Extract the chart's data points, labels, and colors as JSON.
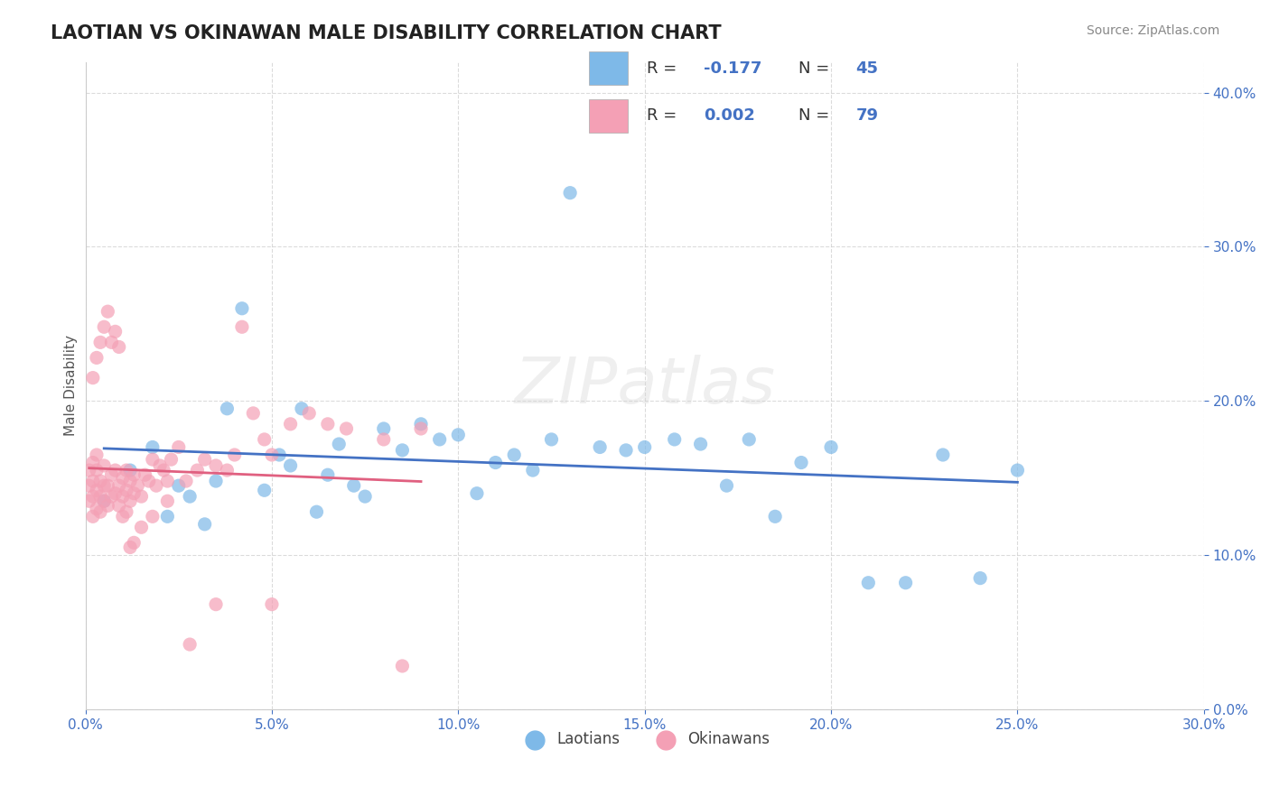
{
  "title": "LAOTIAN VS OKINAWAN MALE DISABILITY CORRELATION CHART",
  "source": "Source: ZipAtlas.com",
  "xlabel_label": "",
  "ylabel_label": "Male Disability",
  "xlim": [
    0.0,
    0.3
  ],
  "ylim": [
    0.0,
    0.42
  ],
  "xtick_vals": [
    0.0,
    0.05,
    0.1,
    0.15,
    0.2,
    0.25,
    0.3
  ],
  "xtick_labels": [
    "0.0%",
    "",
    "",
    "",
    "",
    "",
    "30.0%"
  ],
  "ytick_vals": [
    0.0,
    0.1,
    0.2,
    0.3,
    0.4
  ],
  "ytick_labels": [
    "",
    "10.0%",
    "20.0%",
    "30.0%",
    "40.0%"
  ],
  "grid_color": "#cccccc",
  "background_color": "#ffffff",
  "laotian_color": "#7EB9E8",
  "okinawan_color": "#F4A0B5",
  "laotian_line_color": "#4472C4",
  "okinawan_line_color": "#E06080",
  "watermark": "ZIPatlas",
  "legend_r_laotian": "R = -0.177",
  "legend_n_laotian": "N = 45",
  "legend_r_okinawan": "R = 0.002",
  "legend_n_okinawan": "N = 79",
  "laotian_x": [
    0.005,
    0.012,
    0.018,
    0.022,
    0.025,
    0.028,
    0.032,
    0.035,
    0.038,
    0.042,
    0.048,
    0.052,
    0.055,
    0.058,
    0.062,
    0.065,
    0.068,
    0.072,
    0.075,
    0.08,
    0.085,
    0.09,
    0.095,
    0.1,
    0.105,
    0.11,
    0.115,
    0.12,
    0.125,
    0.13,
    0.138,
    0.145,
    0.15,
    0.158,
    0.165,
    0.172,
    0.178,
    0.185,
    0.192,
    0.2,
    0.21,
    0.22,
    0.23,
    0.24,
    0.25
  ],
  "laotian_y": [
    0.135,
    0.155,
    0.17,
    0.125,
    0.145,
    0.138,
    0.12,
    0.148,
    0.195,
    0.26,
    0.142,
    0.165,
    0.158,
    0.195,
    0.128,
    0.152,
    0.172,
    0.145,
    0.138,
    0.182,
    0.168,
    0.185,
    0.175,
    0.178,
    0.14,
    0.16,
    0.165,
    0.155,
    0.175,
    0.335,
    0.17,
    0.168,
    0.17,
    0.175,
    0.172,
    0.145,
    0.175,
    0.125,
    0.16,
    0.17,
    0.082,
    0.082,
    0.165,
    0.085,
    0.155
  ],
  "okinawan_x": [
    0.001,
    0.001,
    0.001,
    0.002,
    0.002,
    0.002,
    0.002,
    0.003,
    0.003,
    0.003,
    0.003,
    0.004,
    0.004,
    0.004,
    0.005,
    0.005,
    0.005,
    0.006,
    0.006,
    0.007,
    0.007,
    0.008,
    0.008,
    0.009,
    0.009,
    0.01,
    0.01,
    0.011,
    0.011,
    0.012,
    0.012,
    0.013,
    0.013,
    0.014,
    0.015,
    0.016,
    0.017,
    0.018,
    0.019,
    0.02,
    0.021,
    0.022,
    0.023,
    0.025,
    0.027,
    0.03,
    0.032,
    0.035,
    0.038,
    0.04,
    0.042,
    0.045,
    0.048,
    0.05,
    0.055,
    0.06,
    0.065,
    0.07,
    0.08,
    0.09,
    0.002,
    0.003,
    0.004,
    0.005,
    0.006,
    0.007,
    0.008,
    0.009,
    0.01,
    0.011,
    0.012,
    0.013,
    0.015,
    0.018,
    0.022,
    0.028,
    0.035,
    0.05,
    0.085
  ],
  "okinawan_y": [
    0.135,
    0.145,
    0.155,
    0.125,
    0.138,
    0.148,
    0.16,
    0.13,
    0.142,
    0.155,
    0.165,
    0.128,
    0.138,
    0.148,
    0.135,
    0.145,
    0.158,
    0.132,
    0.145,
    0.138,
    0.152,
    0.14,
    0.155,
    0.132,
    0.145,
    0.138,
    0.15,
    0.142,
    0.155,
    0.135,
    0.148,
    0.14,
    0.152,
    0.145,
    0.138,
    0.152,
    0.148,
    0.162,
    0.145,
    0.158,
    0.155,
    0.148,
    0.162,
    0.17,
    0.148,
    0.155,
    0.162,
    0.158,
    0.155,
    0.165,
    0.248,
    0.192,
    0.175,
    0.165,
    0.185,
    0.192,
    0.185,
    0.182,
    0.175,
    0.182,
    0.215,
    0.228,
    0.238,
    0.248,
    0.258,
    0.238,
    0.245,
    0.235,
    0.125,
    0.128,
    0.105,
    0.108,
    0.118,
    0.125,
    0.135,
    0.042,
    0.068,
    0.068,
    0.028
  ]
}
